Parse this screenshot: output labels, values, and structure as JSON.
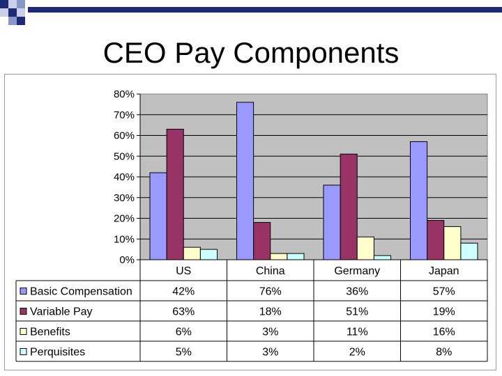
{
  "slide": {
    "title": "CEO Pay Components",
    "accent_colors": [
      "#1e2a78",
      "#8a97c9",
      "#c9cfe6"
    ]
  },
  "chart_data": {
    "type": "bar",
    "title": "",
    "xlabel": "",
    "ylabel": "",
    "categories": [
      "US",
      "China",
      "Germany",
      "Japan"
    ],
    "ylim": [
      0,
      80
    ],
    "y_ticks": [
      "0%",
      "10%",
      "20%",
      "30%",
      "40%",
      "50%",
      "60%",
      "70%",
      "80%"
    ],
    "grid": true,
    "legend": "data-table",
    "series": [
      {
        "name": "Basic Compensation",
        "color": "#9999ff",
        "values": [
          42,
          76,
          36,
          57
        ],
        "labels": [
          "42%",
          "76%",
          "36%",
          "57%"
        ]
      },
      {
        "name": "Variable Pay",
        "color": "#993366",
        "values": [
          63,
          18,
          51,
          19
        ],
        "labels": [
          "63%",
          "18%",
          "51%",
          "19%"
        ]
      },
      {
        "name": "Benefits",
        "color": "#ffffcc",
        "values": [
          6,
          3,
          11,
          16
        ],
        "labels": [
          "6%",
          "3%",
          "11%",
          "16%"
        ]
      },
      {
        "name": "Perquisites",
        "color": "#ccffff",
        "values": [
          5,
          3,
          2,
          8
        ],
        "labels": [
          "5%",
          "3%",
          "2%",
          "8%"
        ]
      }
    ],
    "plot_background": "#c0c0c0"
  }
}
